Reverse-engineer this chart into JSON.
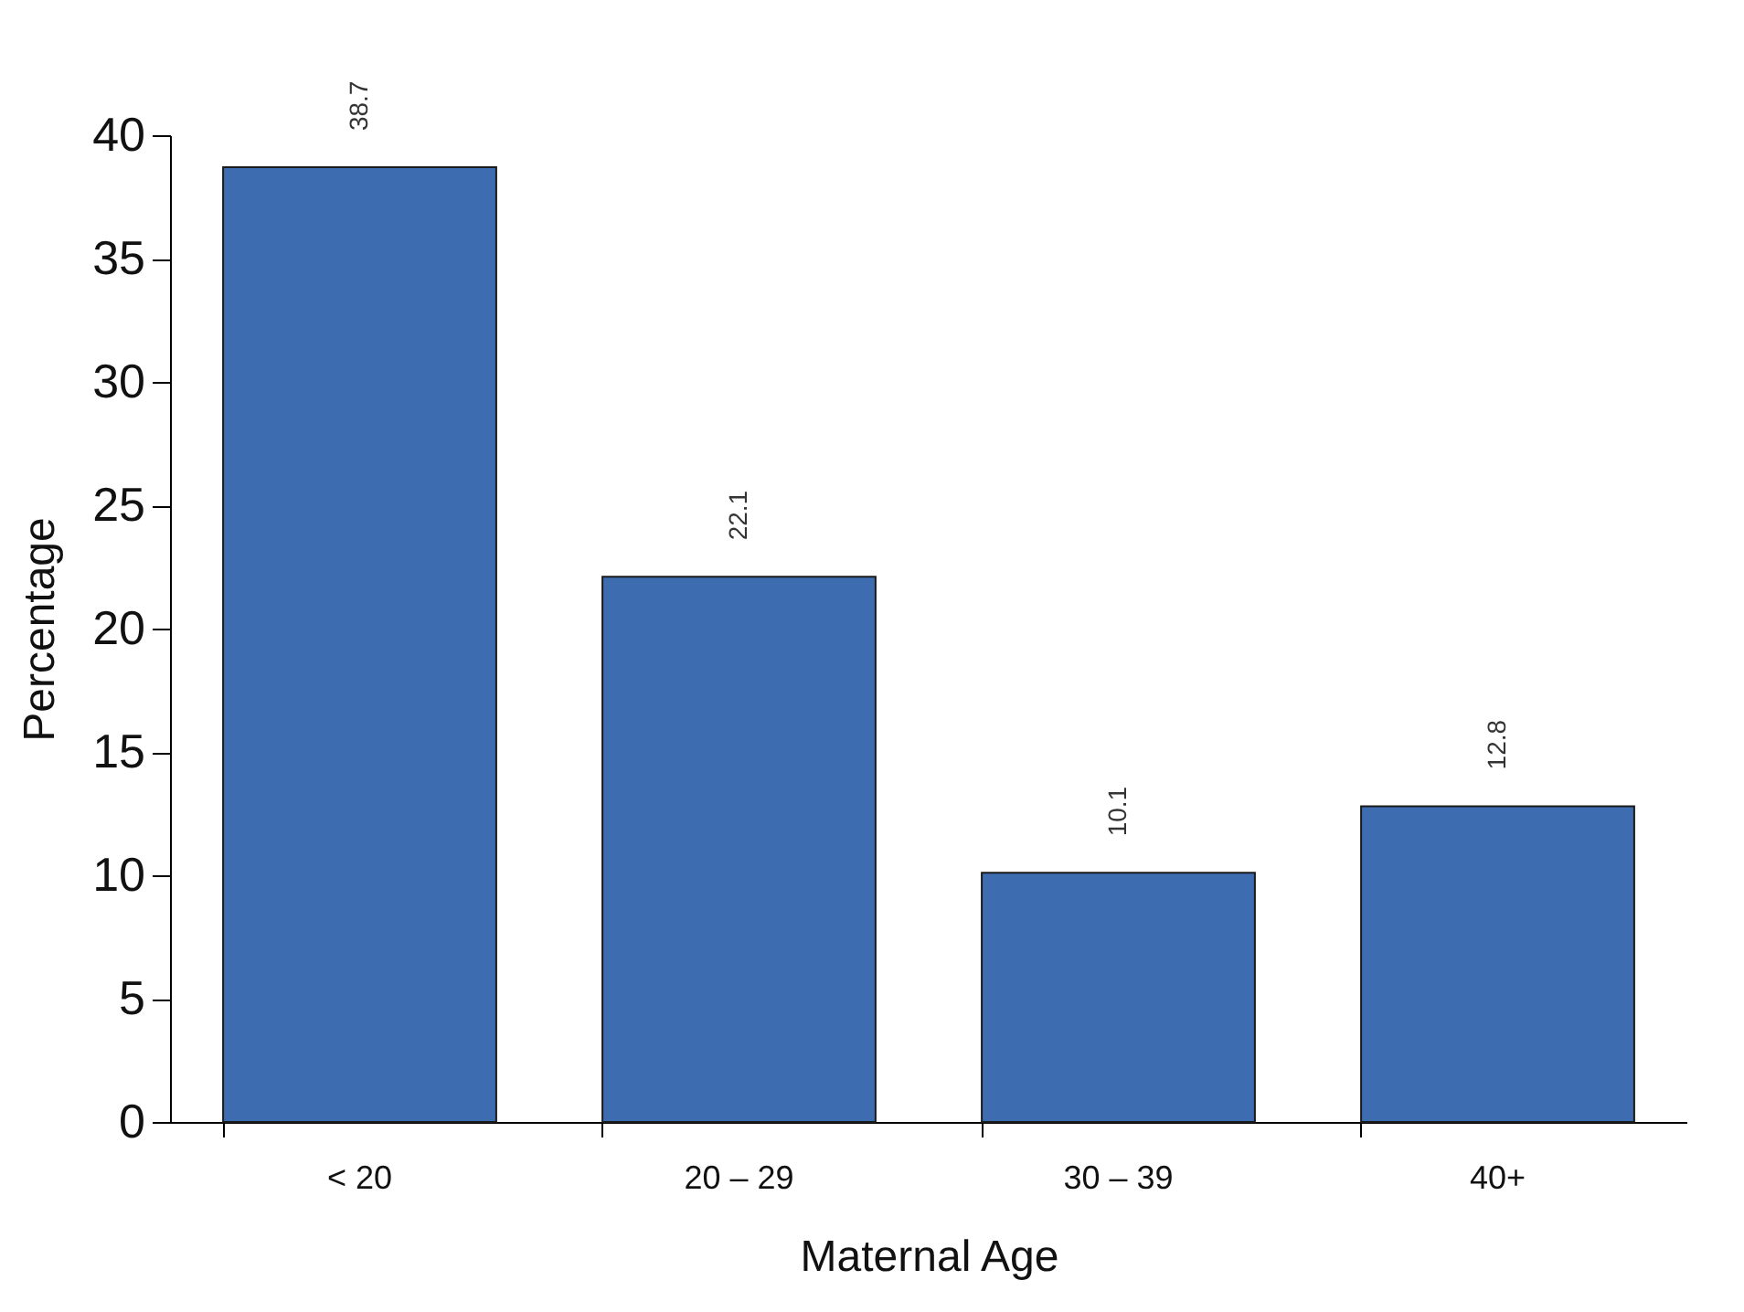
{
  "chart_data": {
    "type": "bar",
    "xlabel": "Maternal Age",
    "ylabel": "Percentage",
    "categories": [
      "< 20",
      "20 – 29",
      "30 – 39",
      "40+"
    ],
    "values": [
      38.7,
      22.1,
      10.1,
      12.8
    ],
    "color": "#3d6db0",
    "ylim": [
      0,
      40
    ],
    "yticks": [
      0,
      5,
      10,
      15,
      20,
      25,
      30,
      35,
      40
    ],
    "grid": false,
    "data_labels": true
  }
}
